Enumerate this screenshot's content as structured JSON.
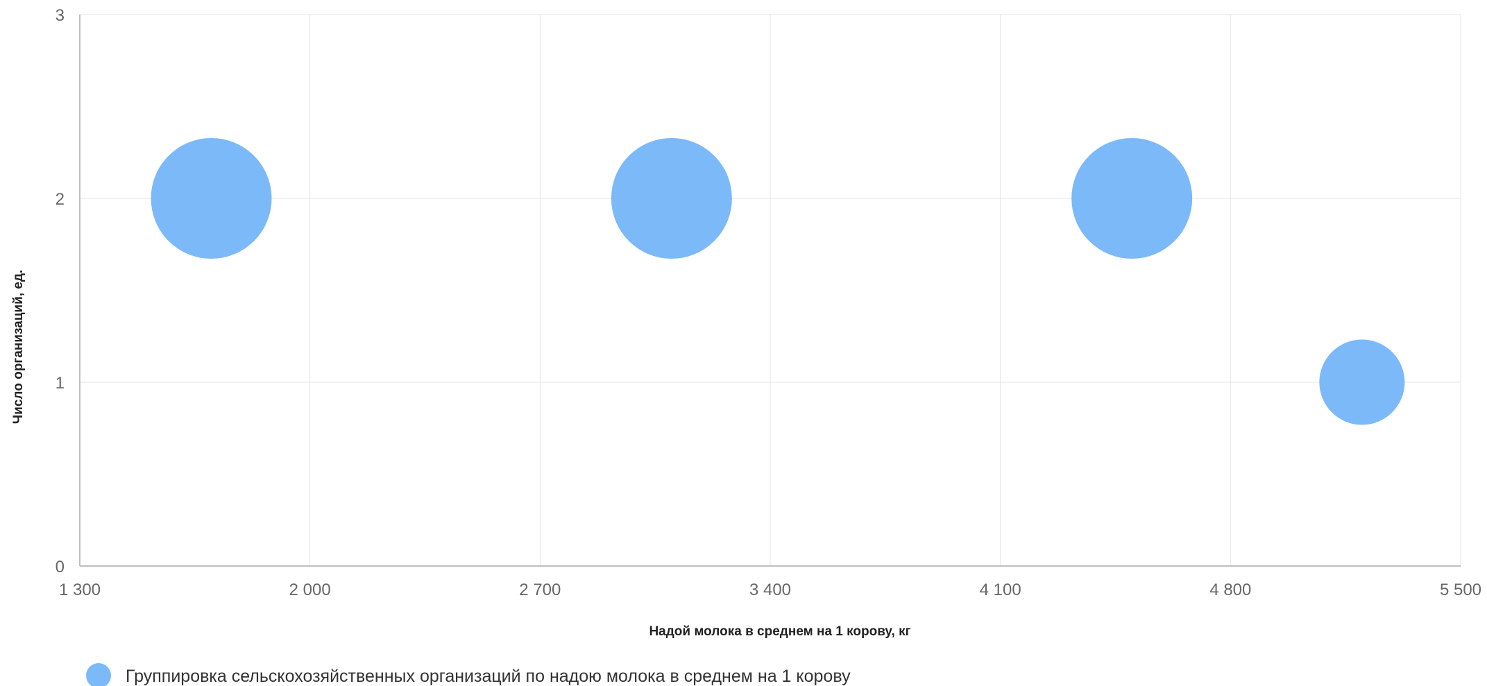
{
  "chart_data": {
    "type": "scatter",
    "subtype": "bubble",
    "xlabel": "Надой молока в среднем на 1 корову, кг",
    "ylabel": "Число организаций, ед.",
    "xlim": [
      1300,
      5500
    ],
    "ylim": [
      0,
      3
    ],
    "x_ticks": [
      1300,
      2000,
      2700,
      3400,
      4100,
      4800,
      5500
    ],
    "x_tick_labels": [
      "1 300",
      "2 000",
      "2 700",
      "3 400",
      "4 100",
      "4 800",
      "5 500"
    ],
    "y_ticks": [
      0,
      1,
      2,
      3
    ],
    "y_tick_labels": [
      "0",
      "1",
      "2",
      "3"
    ],
    "grid": true,
    "legend_position": "bottom-left",
    "series": [
      {
        "name": "Группировка сельскохозяйственных организаций по надою молока в среднем на 1 корову",
        "color": "#7cb9f8",
        "points": [
          {
            "x": 1700,
            "y": 2
          },
          {
            "x": 3100,
            "y": 2
          },
          {
            "x": 4500,
            "y": 2
          },
          {
            "x": 5200,
            "y": 1
          }
        ]
      }
    ]
  }
}
